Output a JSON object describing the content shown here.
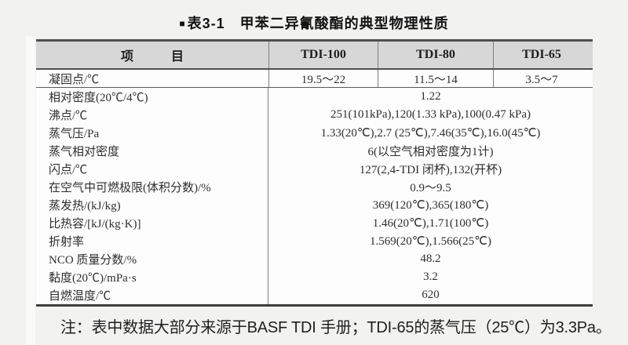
{
  "page": {
    "title_marker": "■",
    "title": "表3-1　甲苯二异氰酸酯的典型物理性质",
    "footnote": "注：表中数据大部分来源于BASF TDI 手册；TDI-65的蒸气压（25℃）为3.3Pa。"
  },
  "table": {
    "header": {
      "item": "项　　　目",
      "columns": [
        "TDI-100",
        "TDI-80",
        "TDI-65"
      ]
    },
    "split_row": {
      "label": "凝固点/℃",
      "values": [
        "19.5～22",
        "11.5～14",
        "3.5～7"
      ]
    },
    "rows": [
      {
        "label": "相对密度(20℃/4℃)",
        "value": "1.22"
      },
      {
        "label": "沸点/℃",
        "value": "251(101kPa),120(1.33 kPa),100(0.47 kPa)"
      },
      {
        "label": "蒸气压/Pa",
        "value": "1.33(20℃),2.7 (25℃),7.46(35℃),16.0(45℃)"
      },
      {
        "label": "蒸气相对密度",
        "value": "6(以空气相对密度为1计)"
      },
      {
        "label": "闪点/℃",
        "value": "127(2,4-TDI 闭杯),132(开杯)"
      },
      {
        "label": "在空气中可燃极限(体积分数)/%",
        "value": "0.9～9.5"
      },
      {
        "label": "蒸发热/(kJ/kg)",
        "value": "369(120℃),365(180℃)"
      },
      {
        "label": "比热容/[kJ/(kg·K)]",
        "value": "1.46(20℃),1.71(100℃)"
      },
      {
        "label": "折射率",
        "value": "1.569(20℃),1.566(25℃)"
      },
      {
        "label": "NCO 质量分数/%",
        "value": "48.2"
      },
      {
        "label": "黏度(20℃)/mPa·s",
        "value": "3.2"
      },
      {
        "label": "自燃温度/℃",
        "value": "620"
      }
    ]
  },
  "colors": {
    "page_bg": "#f2f2f1",
    "header_bg": "#d7d7d7",
    "table_bg": "#fdfdfd",
    "border_dark": "#4f4f4f",
    "divider": "#7e7e7e",
    "text": "#2e2e2e"
  }
}
